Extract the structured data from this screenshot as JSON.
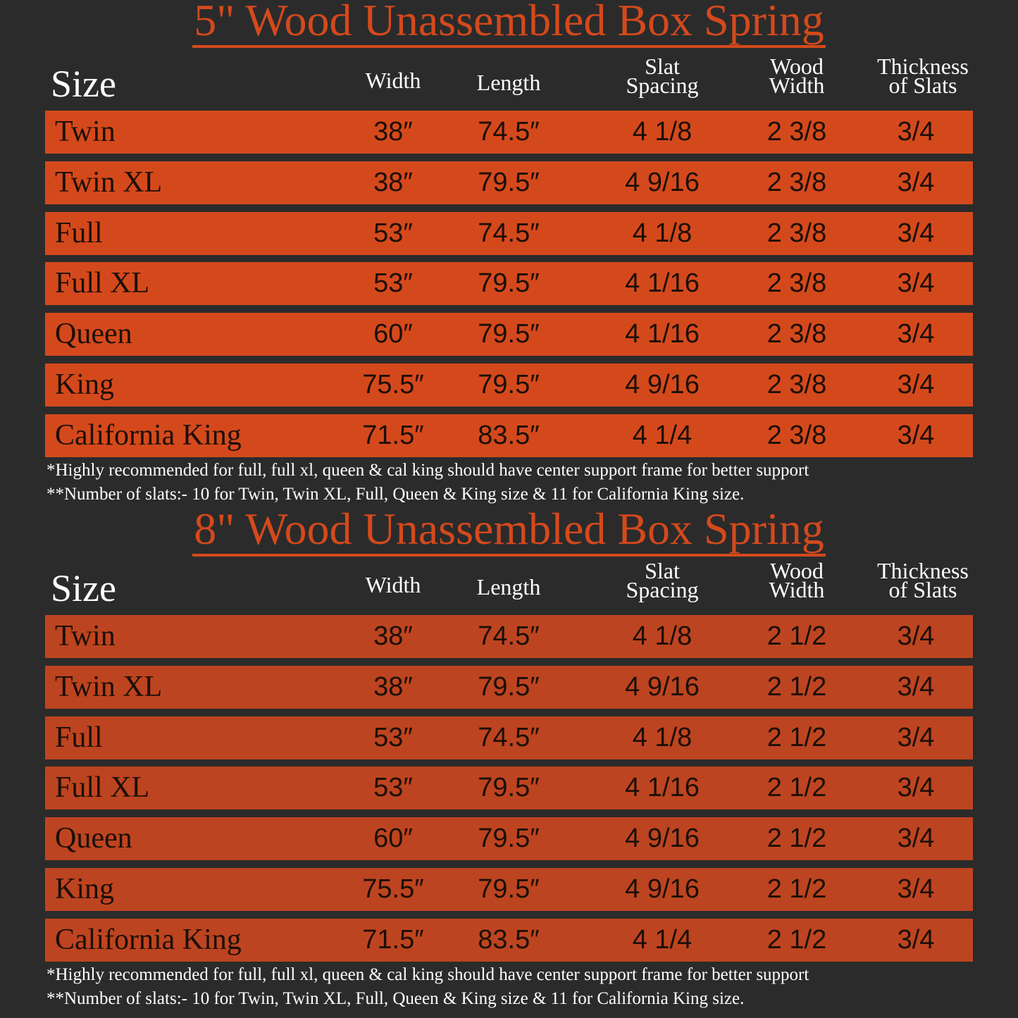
{
  "colors": {
    "background": "#2b2b2b",
    "accent": "#d4491c",
    "row_5in": "#d4491c",
    "row_8in": "#bd4420",
    "row_text": "#1c0f07"
  },
  "headers": {
    "size": "Size",
    "width": "Width",
    "length": "Length",
    "slat_spacing": [
      "Slat",
      "Spacing"
    ],
    "wood_width": [
      "Wood",
      "Width"
    ],
    "thickness": [
      "Thickness",
      "of Slats"
    ]
  },
  "tables": [
    {
      "title": "5\" Wood Unassembled Box Spring",
      "rows": [
        {
          "size": "Twin",
          "width": "38″",
          "length": "74.5″",
          "slat_spacing": "4 1/8",
          "wood_width": "2 3/8",
          "thickness": "3/4"
        },
        {
          "size": "Twin XL",
          "width": "38″",
          "length": "79.5″",
          "slat_spacing": "4 9/16",
          "wood_width": "2 3/8",
          "thickness": "3/4"
        },
        {
          "size": "Full",
          "width": "53″",
          "length": "74.5″",
          "slat_spacing": "4 1/8",
          "wood_width": "2 3/8",
          "thickness": "3/4"
        },
        {
          "size": "Full XL",
          "width": "53″",
          "length": "79.5″",
          "slat_spacing": "4 1/16",
          "wood_width": "2 3/8",
          "thickness": "3/4"
        },
        {
          "size": "Queen",
          "width": "60″",
          "length": "79.5″",
          "slat_spacing": "4 1/16",
          "wood_width": "2 3/8",
          "thickness": "3/4"
        },
        {
          "size": "King",
          "width": "75.5″",
          "length": "79.5″",
          "slat_spacing": "4 9/16",
          "wood_width": "2 3/8",
          "thickness": "3/4"
        },
        {
          "size": "California King",
          "width": "71.5″",
          "length": "83.5″",
          "slat_spacing": "4 1/4",
          "wood_width": "2 3/8",
          "thickness": "3/4"
        }
      ],
      "notes": [
        "*Highly recommended for full, full xl, queen & cal king should have center support frame  for better support",
        "**Number of slats:- 10 for Twin, Twin XL, Full, Queen & King size & 11 for California King size."
      ]
    },
    {
      "title": "8\" Wood Unassembled Box Spring",
      "rows": [
        {
          "size": "Twin",
          "width": "38″",
          "length": "74.5″",
          "slat_spacing": "4 1/8",
          "wood_width": "2 1/2",
          "thickness": "3/4"
        },
        {
          "size": "Twin XL",
          "width": "38″",
          "length": "79.5″",
          "slat_spacing": "4 9/16",
          "wood_width": "2 1/2",
          "thickness": "3/4"
        },
        {
          "size": "Full",
          "width": "53″",
          "length": "74.5″",
          "slat_spacing": "4 1/8",
          "wood_width": "2 1/2",
          "thickness": "3/4"
        },
        {
          "size": "Full XL",
          "width": "53″",
          "length": "79.5″",
          "slat_spacing": "4 1/16",
          "wood_width": "2 1/2",
          "thickness": "3/4"
        },
        {
          "size": "Queen",
          "width": "60″",
          "length": "79.5″",
          "slat_spacing": "4 9/16",
          "wood_width": "2 1/2",
          "thickness": "3/4"
        },
        {
          "size": "King",
          "width": "75.5″",
          "length": "79.5″",
          "slat_spacing": "4 9/16",
          "wood_width": "2 1/2",
          "thickness": "3/4"
        },
        {
          "size": "California King",
          "width": "71.5″",
          "length": "83.5″",
          "slat_spacing": "4 1/4",
          "wood_width": "2 1/2",
          "thickness": "3/4"
        }
      ],
      "notes": [
        "*Highly recommended for full, full xl, queen & cal king should have center support frame  for better support",
        "**Number of slats:- 10 for Twin, Twin XL, Full, Queen & King size & 11 for California King size."
      ]
    }
  ]
}
